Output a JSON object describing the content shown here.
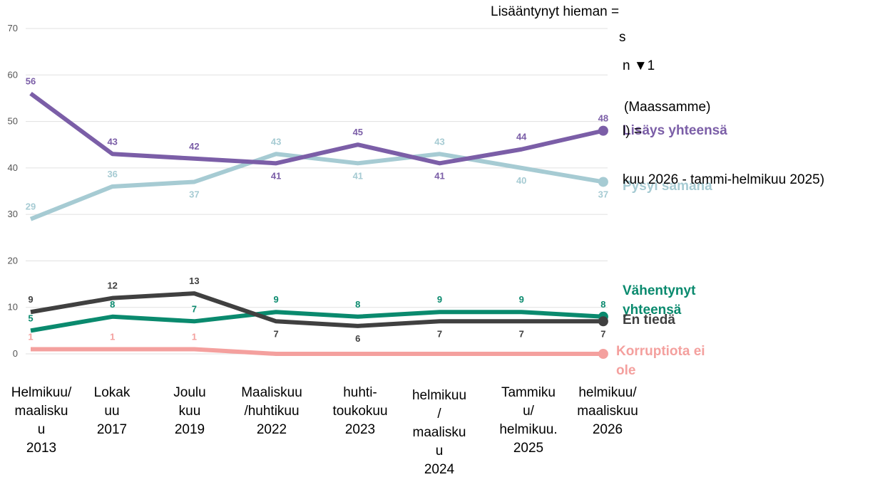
{
  "chart_data": {
    "type": "line",
    "categories": [
      "Helmikuu/\nmaalisku\nu\n2013",
      "Lokak\nuu\n2017",
      "Joulu\nkuu\n2019",
      "Maaliskuu\n/huhtikuu\n2022",
      "huhti-\ntoukokuu\n2023",
      "helmikuu\n/\nmaalisku\nu\n2024",
      "Tammiku\nu/\nhelmikuu.\n2025",
      "helmikuu/\nmaaliskuu\n2026"
    ],
    "series": [
      {
        "name": "Lisäys yhteensä",
        "color": "#7b5ea7",
        "values": [
          56,
          43,
          42,
          41,
          45,
          41,
          44,
          48
        ]
      },
      {
        "name": "Pysyi samana",
        "color": "#a6cbd3",
        "values": [
          29,
          36,
          37,
          43,
          41,
          43,
          40,
          37
        ]
      },
      {
        "name": "Vähentynyt yhteensä",
        "color": "#0a8a6e",
        "values": [
          5,
          8,
          7,
          9,
          8,
          9,
          9,
          8
        ]
      },
      {
        "name": "En tiedä",
        "color": "#404040",
        "values": [
          9,
          12,
          13,
          7,
          6,
          7,
          7,
          7
        ]
      },
      {
        "name": "Korruptiota ei ole",
        "color": "#f4a09e",
        "values": [
          1,
          1,
          1,
          0,
          0,
          0,
          0,
          0
        ],
        "value_labels": [
          "1",
          "1",
          "1",
          null,
          null,
          null,
          null,
          null
        ]
      }
    ],
    "ylim": [
      0,
      70
    ],
    "yticks": [
      0,
      10,
      20,
      30,
      40,
      50,
      60,
      70
    ],
    "grid": true,
    "annotations": [
      "Lisääntynyt hieman =",
      "s",
      "n ▼1",
      "(Maassamme)",
      "l) =",
      "kuu 2026 - tammi-helmikuu 2025)"
    ]
  }
}
